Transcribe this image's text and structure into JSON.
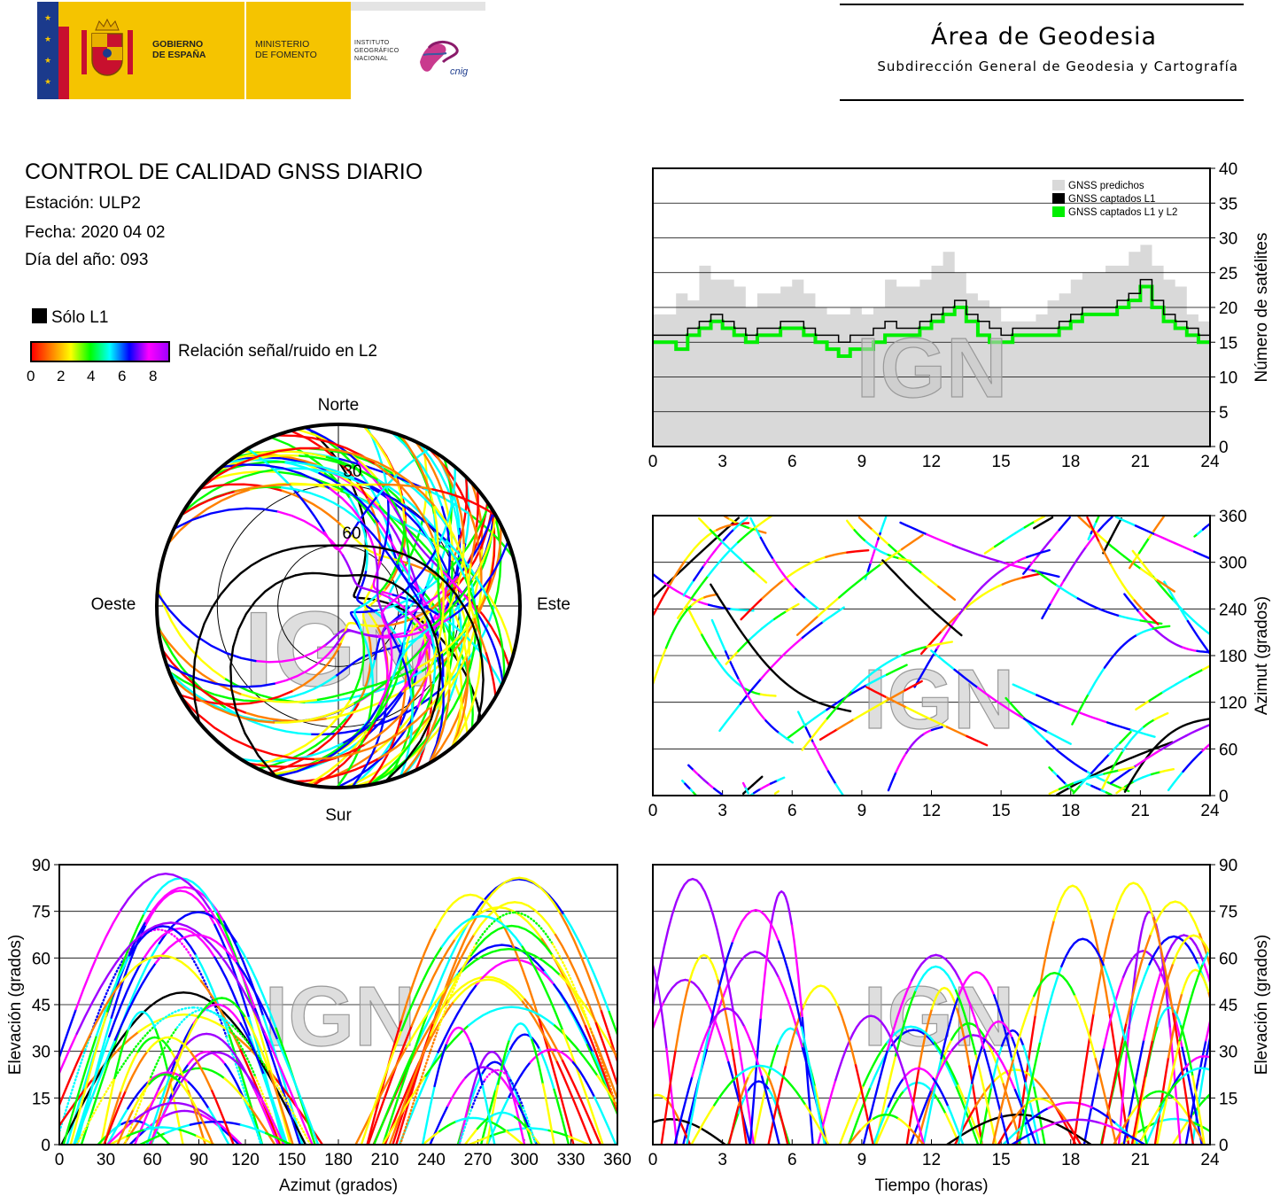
{
  "header": {
    "gobierno": [
      "GOBIERNO",
      "DE ESPAÑA"
    ],
    "ministerio": [
      "MINISTERIO",
      "DE FOMENTO"
    ],
    "instituto": [
      "INSTITUTO",
      "GEOGRÁFICO",
      "NACIONAL"
    ],
    "cnig_logo_text": "cnig",
    "area_title": "Área de Geodesia",
    "area_subtitle": "Subdirección General de Geodesia y Cartografía"
  },
  "report": {
    "title": "CONTROL DE CALIDAD GNSS DIARIO",
    "estacion": "Estación: ULP2",
    "fecha": "Fecha: 2020 04 02",
    "dia": "Día del año: 093"
  },
  "legend": {
    "solo_l1": "Sólo L1",
    "snr_label": "Relación señal/ruido en L2",
    "snr_ticks": [
      "0",
      "2",
      "4",
      "6",
      "8"
    ],
    "snr_colors": [
      "#ff0000",
      "#ff8000",
      "#ffff00",
      "#00ff00",
      "#00ffff",
      "#0000ff",
      "#ff00ff",
      "#a000ff"
    ]
  },
  "watermark": "IGN",
  "chart_data": [
    {
      "id": "satellites",
      "type": "area",
      "x_ticks": [
        "0",
        "3",
        "6",
        "9",
        "12",
        "15",
        "18",
        "21",
        "24"
      ],
      "y_ticks": [
        "0",
        "5",
        "10",
        "15",
        "20",
        "25",
        "30",
        "35",
        "40"
      ],
      "xlim": [
        0,
        24
      ],
      "ylim": [
        0,
        40
      ],
      "ylabel": "Número de satélites",
      "legend_position": "top-right",
      "series": [
        {
          "name": "GNSS predichos",
          "color": "#d9d9d9",
          "x": [
            0,
            1,
            1.5,
            2,
            2.5,
            3,
            3.5,
            4,
            4.5,
            5,
            5.5,
            6,
            6.5,
            7,
            7.5,
            8,
            8.5,
            9,
            9.5,
            10,
            10.5,
            11,
            11.5,
            12,
            12.5,
            13,
            13.5,
            14,
            14.5,
            15,
            15.5,
            16,
            16.5,
            17,
            17.5,
            18,
            18.5,
            19,
            19.5,
            20,
            20.5,
            21,
            21.5,
            22,
            22.5,
            23,
            23.5,
            24
          ],
          "values": [
            19,
            22,
            21,
            26,
            24,
            24,
            23,
            20,
            22,
            22,
            23,
            24,
            22,
            20,
            19,
            19,
            20,
            19,
            20,
            24,
            23,
            23,
            24,
            26,
            28,
            25,
            22,
            21,
            20,
            18,
            18,
            18,
            19,
            21,
            22,
            24,
            25,
            25,
            26,
            26,
            28,
            29,
            26,
            24,
            23,
            19,
            18,
            17
          ]
        },
        {
          "name": "GNSS captados L1",
          "color": "#000000",
          "x": [
            0,
            1,
            1.5,
            2,
            2.5,
            3,
            3.5,
            4,
            4.5,
            5,
            5.5,
            6,
            6.5,
            7,
            7.5,
            8,
            8.5,
            9,
            9.5,
            10,
            10.5,
            11,
            11.5,
            12,
            12.5,
            13,
            13.5,
            14,
            14.5,
            15,
            15.5,
            16,
            16.5,
            17,
            17.5,
            18,
            18.5,
            19,
            19.5,
            20,
            20.5,
            21,
            21.5,
            22,
            22.5,
            23,
            23.5,
            24
          ],
          "values": [
            16,
            16,
            17,
            18,
            19,
            18,
            17,
            16,
            17,
            17,
            18,
            18,
            17,
            16,
            16,
            15,
            16,
            16,
            17,
            18,
            17,
            17,
            18,
            19,
            20,
            21,
            19,
            18,
            17,
            16,
            17,
            17,
            17,
            17,
            18,
            19,
            20,
            20,
            20,
            21,
            22,
            24,
            21,
            19,
            18,
            17,
            16,
            16
          ]
        },
        {
          "name": "GNSS captados L1 y L2",
          "color": "#00ee00",
          "x": [
            0,
            1,
            1.5,
            2,
            2.5,
            3,
            3.5,
            4,
            4.5,
            5,
            5.5,
            6,
            6.5,
            7,
            7.5,
            8,
            8.5,
            9,
            9.5,
            10,
            10.5,
            11,
            11.5,
            12,
            12.5,
            13,
            13.5,
            14,
            14.5,
            15,
            15.5,
            16,
            16.5,
            17,
            17.5,
            18,
            18.5,
            19,
            19.5,
            20,
            20.5,
            21,
            21.5,
            22,
            22.5,
            23,
            23.5,
            24
          ],
          "values": [
            15,
            14,
            16,
            17,
            18,
            17,
            16,
            15,
            16,
            16,
            17,
            17,
            16,
            15,
            14,
            13,
            14,
            14,
            15,
            16,
            16,
            16,
            17,
            18,
            19,
            20,
            18,
            16,
            15,
            15,
            16,
            16,
            16,
            16,
            17,
            18,
            19,
            19,
            19,
            20,
            21,
            23,
            20,
            18,
            17,
            16,
            15,
            15
          ]
        }
      ]
    },
    {
      "id": "skyplot",
      "type": "scatter",
      "projection": "polar",
      "direction_labels": {
        "n": "Norte",
        "s": "Sur",
        "e": "Este",
        "w": "Oeste"
      },
      "ring_labels": [
        "30",
        "60"
      ],
      "color_scale": "snr_l2",
      "tracks": [
        {
          "az_start": 330,
          "az_end": 30,
          "peak_el": 62,
          "color": "#ff00ff"
        },
        {
          "az_start": 320,
          "az_end": 200,
          "peak_el": 70,
          "color": "#a000ff"
        },
        {
          "az_start": 40,
          "az_end": 160,
          "peak_el": 68,
          "color": "#ff00ff"
        },
        {
          "az_start": 300,
          "az_end": 170,
          "peak_el": 55,
          "color": "#0000ff"
        },
        {
          "az_start": 60,
          "az_end": 190,
          "peak_el": 50,
          "color": "#00ffff"
        },
        {
          "az_start": 20,
          "az_end": 150,
          "peak_el": 40,
          "color": "#00ff00"
        },
        {
          "az_start": 340,
          "az_end": 210,
          "peak_el": 38,
          "color": "#ffff00"
        },
        {
          "az_start": 50,
          "az_end": 120,
          "peak_el": 25,
          "color": "#ff0000"
        },
        {
          "az_start": 310,
          "az_end": 240,
          "peak_el": 25,
          "color": "#ff0000"
        },
        {
          "az_start": 200,
          "az_end": 165,
          "peak_el": 75,
          "color": "#000000"
        },
        {
          "az_start": 230,
          "az_end": 130,
          "peak_el": 60,
          "color": "#8000ff"
        },
        {
          "az_start": 300,
          "az_end": 60,
          "peak_el": 30,
          "color": "#ff8000"
        }
      ]
    },
    {
      "id": "azimuth_time",
      "type": "scatter",
      "x_ticks": [
        "0",
        "3",
        "6",
        "9",
        "12",
        "15",
        "18",
        "21",
        "24"
      ],
      "y_ticks": [
        "0",
        "60",
        "120",
        "180",
        "240",
        "300",
        "360"
      ],
      "xlim": [
        0,
        24
      ],
      "ylim": [
        0,
        360
      ],
      "ylabel": "Azimut (grados)",
      "color_scale": "snr_l2"
    },
    {
      "id": "elev_azimuth",
      "type": "scatter",
      "x_ticks": [
        "0",
        "30",
        "60",
        "90",
        "120",
        "150",
        "180",
        "210",
        "240",
        "270",
        "300",
        "330",
        "360"
      ],
      "y_ticks": [
        "0",
        "15",
        "30",
        "45",
        "60",
        "75",
        "90"
      ],
      "xlim": [
        0,
        360
      ],
      "ylim": [
        0,
        90
      ],
      "xlabel": "Azimut (grados)",
      "ylabel": "Elevación (grados)",
      "color_scale": "snr_l2"
    },
    {
      "id": "elev_time",
      "type": "scatter",
      "x_ticks": [
        "0",
        "3",
        "6",
        "9",
        "12",
        "15",
        "18",
        "21",
        "24"
      ],
      "y_ticks": [
        "0",
        "15",
        "30",
        "45",
        "60",
        "75",
        "90"
      ],
      "xlim": [
        0,
        24
      ],
      "ylim": [
        0,
        90
      ],
      "xlabel": "Tiempo (horas)",
      "ylabel": "Elevación (grados)",
      "color_scale": "snr_l2"
    }
  ]
}
